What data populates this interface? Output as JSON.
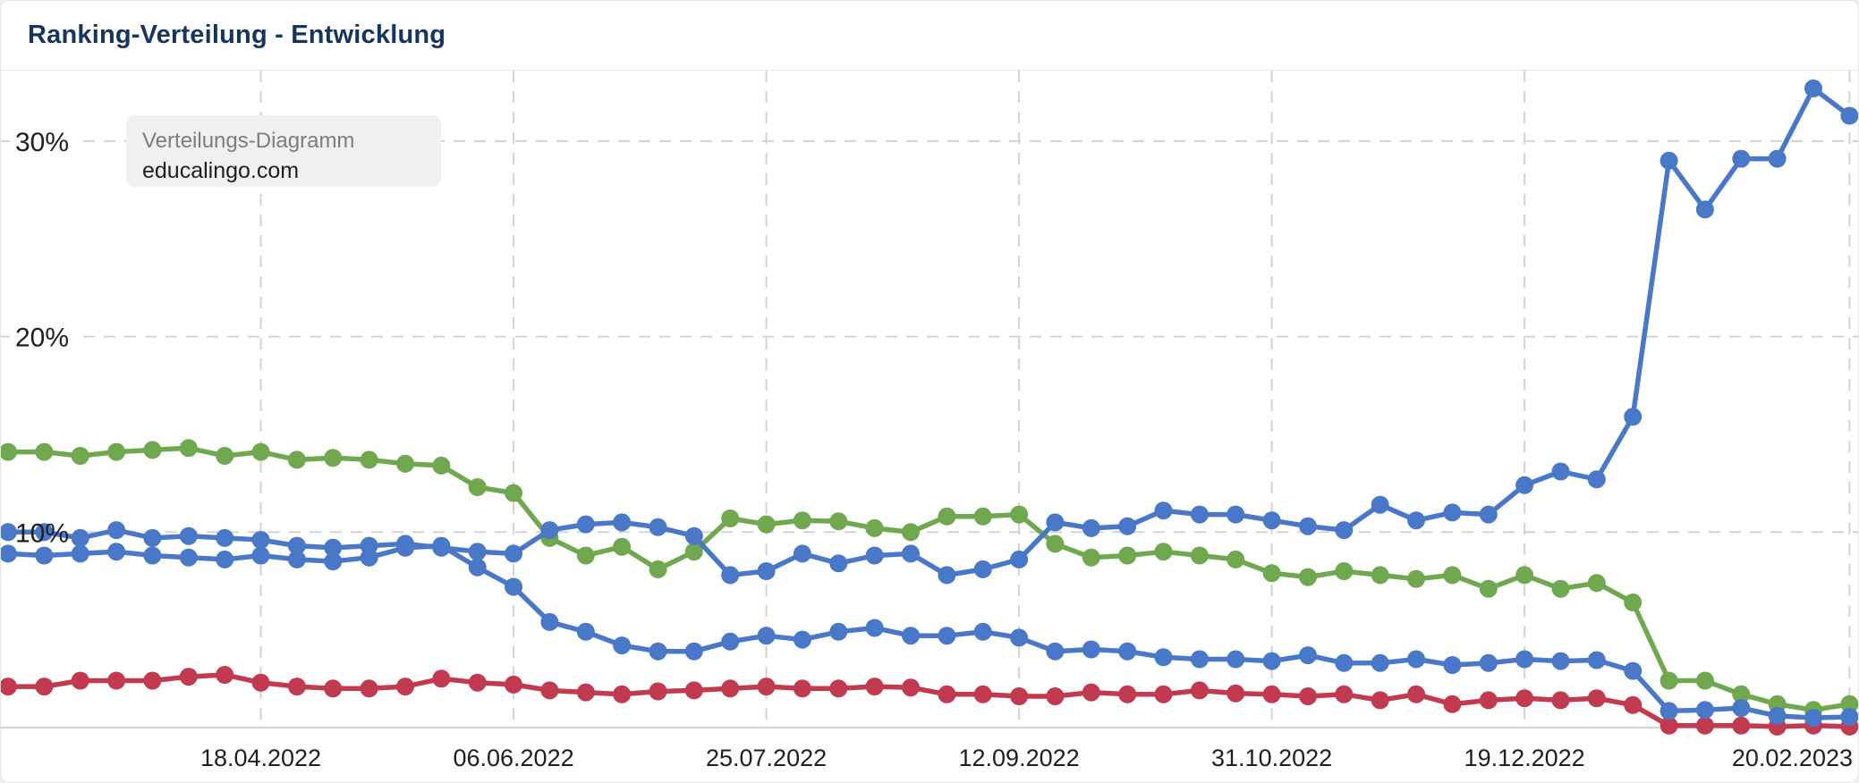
{
  "header": {
    "title": "Ranking-Verteilung - Entwicklung"
  },
  "tooltip": {
    "line1": "Verteilungs-Diagramm",
    "line2": "educalingo.com"
  },
  "colors": {
    "title": "#16355d",
    "blue": "#4a78c8",
    "green": "#6fa84e",
    "red": "#c23a50",
    "grid": "#d3d3d3",
    "baseline": "#d5d5d5",
    "axis_text": "#1f1f1f",
    "tooltip_bg": "#f0f0f0"
  },
  "chart_data": {
    "type": "line",
    "title": "Ranking-Verteilung - Entwicklung",
    "xlabel": "",
    "ylabel": "",
    "grid": true,
    "legend_position": "none",
    "n_points": 52,
    "point_interval": "weekly",
    "ylim": [
      0,
      33.6
    ],
    "y_ticks": [
      {
        "value": 30,
        "label": "30%"
      },
      {
        "value": 20,
        "label": "20%"
      },
      {
        "value": 10,
        "label": "10%"
      }
    ],
    "x_ticks": [
      {
        "index": 7,
        "label": "18.04.2022"
      },
      {
        "index": 14,
        "label": "06.06.2022"
      },
      {
        "index": 21,
        "label": "25.07.2022"
      },
      {
        "index": 28,
        "label": "12.09.2022"
      },
      {
        "index": 35,
        "label": "31.10.2022"
      },
      {
        "index": 42,
        "label": "19.12.2022"
      },
      {
        "index": 51,
        "label": "20.02.2023"
      }
    ],
    "series": [
      {
        "name": "green",
        "color": "#6fa84e",
        "values": [
          14.1,
          14.1,
          13.9,
          14.1,
          14.2,
          14.3,
          13.9,
          14.1,
          13.7,
          13.8,
          13.7,
          13.5,
          13.4,
          12.3,
          12.0,
          9.7,
          8.8,
          9.25,
          8.1,
          9.0,
          10.7,
          10.4,
          10.6,
          10.55,
          10.2,
          10.0,
          10.8,
          10.8,
          10.9,
          9.4,
          8.7,
          8.8,
          9.0,
          8.8,
          8.6,
          7.9,
          7.7,
          8.0,
          7.8,
          7.6,
          7.8,
          7.1,
          7.8,
          7.1,
          7.4,
          6.4,
          2.4,
          2.4,
          1.7,
          1.2,
          0.9,
          1.2
        ]
      },
      {
        "name": "red",
        "color": "#c23a50",
        "values": [
          2.1,
          2.1,
          2.4,
          2.4,
          2.4,
          2.6,
          2.7,
          2.3,
          2.1,
          2.0,
          2.0,
          2.1,
          2.5,
          2.3,
          2.2,
          1.9,
          1.8,
          1.7,
          1.85,
          1.9,
          2.0,
          2.1,
          2.0,
          2.0,
          2.1,
          2.05,
          1.7,
          1.7,
          1.6,
          1.6,
          1.8,
          1.7,
          1.7,
          1.9,
          1.75,
          1.7,
          1.6,
          1.7,
          1.4,
          1.7,
          1.2,
          1.4,
          1.5,
          1.4,
          1.5,
          1.15,
          0.1,
          0.1,
          0.1,
          0.05,
          0.1,
          0.05
        ]
      },
      {
        "name": "blue-lower",
        "color": "#4a78c8",
        "values": [
          8.9,
          8.8,
          8.9,
          9.0,
          8.8,
          8.7,
          8.6,
          8.8,
          8.6,
          8.5,
          8.7,
          9.2,
          9.3,
          8.2,
          7.2,
          5.4,
          4.9,
          4.2,
          3.9,
          3.9,
          4.4,
          4.7,
          4.5,
          4.9,
          5.1,
          4.7,
          4.7,
          4.9,
          4.6,
          3.9,
          4.0,
          3.9,
          3.6,
          3.5,
          3.5,
          3.4,
          3.7,
          3.3,
          3.3,
          3.5,
          3.2,
          3.3,
          3.5,
          3.4,
          3.45,
          2.9,
          0.85,
          0.9,
          1.0,
          0.6,
          0.5,
          0.55
        ]
      },
      {
        "name": "blue-upper",
        "color": "#4a78c8",
        "values": [
          10.0,
          10.0,
          9.7,
          10.1,
          9.7,
          9.8,
          9.7,
          9.6,
          9.3,
          9.2,
          9.3,
          9.4,
          9.2,
          9.0,
          8.9,
          10.1,
          10.4,
          10.5,
          10.25,
          9.8,
          7.8,
          8.0,
          8.9,
          8.4,
          8.8,
          8.9,
          7.8,
          8.1,
          8.6,
          10.5,
          10.2,
          10.3,
          11.1,
          10.9,
          10.9,
          10.6,
          10.3,
          10.1,
          11.4,
          10.6,
          11.0,
          10.9,
          12.4,
          13.1,
          12.7,
          15.9,
          29.0,
          26.5,
          29.1,
          29.1,
          32.7,
          31.3
        ]
      }
    ]
  }
}
